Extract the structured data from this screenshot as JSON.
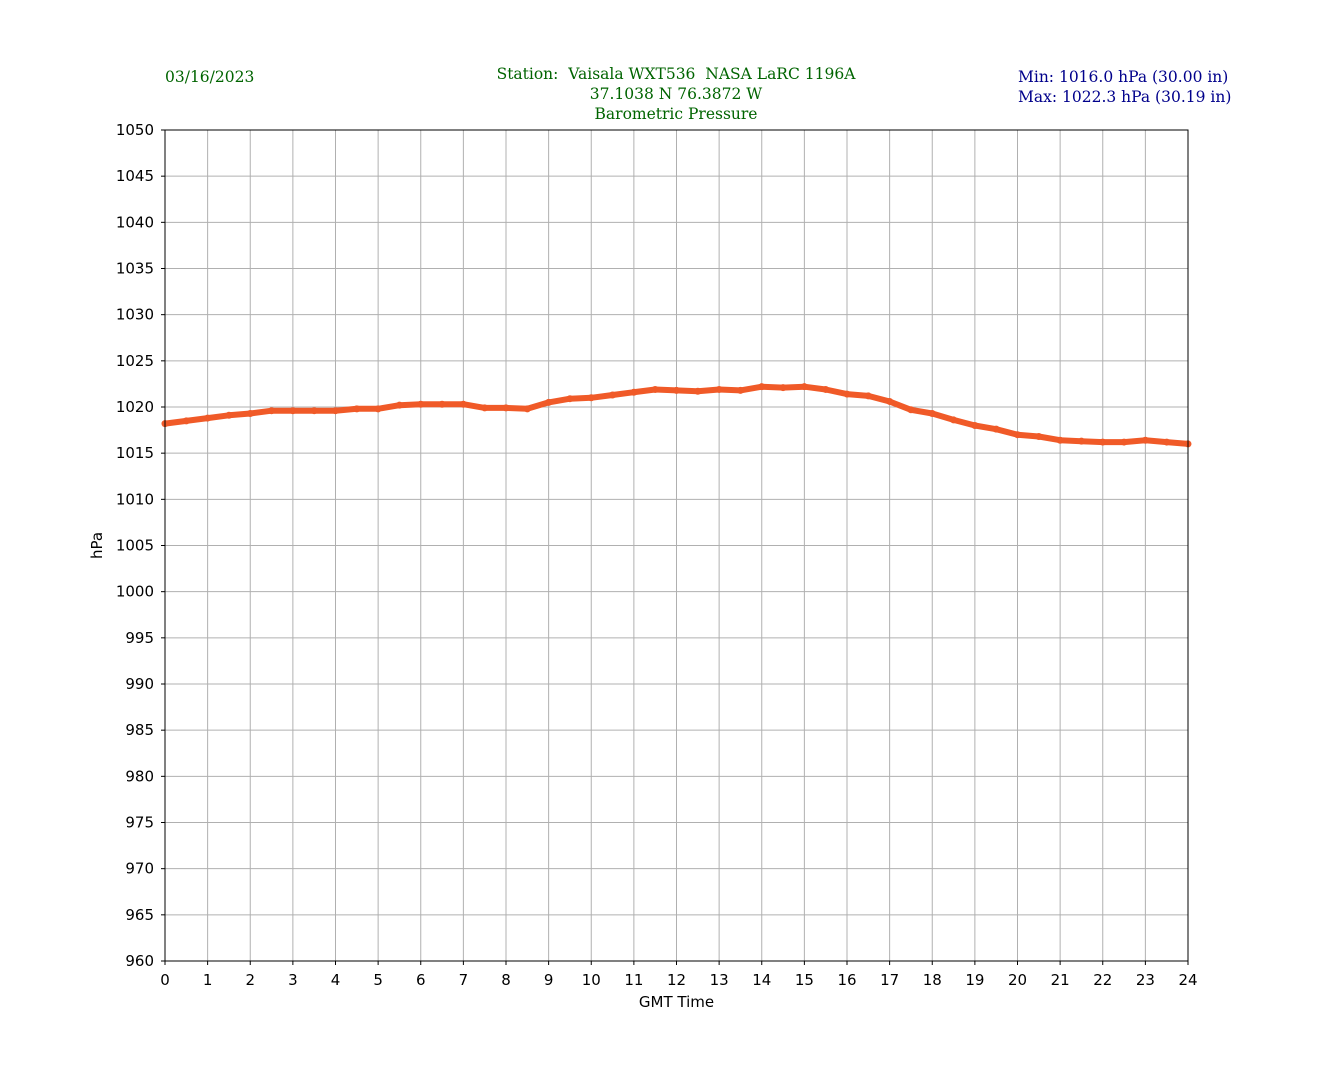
{
  "header": {
    "date": "03/16/2023",
    "station_line": "Station:  Vaisala WXT536  NASA LaRC 1196A",
    "coords_line": "37.1038 N 76.3872 W",
    "subtitle": "Barometric Pressure",
    "min_line": "Min: 1016.0 hPa (30.00 in)",
    "max_line": "Max: 1022.3 hPa (30.19 in)"
  },
  "colors": {
    "series": "#f05a28",
    "header_green": "#006400",
    "header_navy": "#00008b",
    "grid": "#b0b0b0"
  },
  "chart_data": {
    "type": "line",
    "title": "Barometric Pressure",
    "xlabel": "GMT Time",
    "ylabel": "hPa",
    "xlim": [
      0,
      24
    ],
    "ylim": [
      960,
      1050
    ],
    "xticks": [
      0,
      1,
      2,
      3,
      4,
      5,
      6,
      7,
      8,
      9,
      10,
      11,
      12,
      13,
      14,
      15,
      16,
      17,
      18,
      19,
      20,
      21,
      22,
      23,
      24
    ],
    "yticks": [
      960,
      965,
      970,
      975,
      980,
      985,
      990,
      995,
      1000,
      1005,
      1010,
      1015,
      1020,
      1025,
      1030,
      1035,
      1040,
      1045,
      1050
    ],
    "grid": true,
    "series": [
      {
        "x": [
          0,
          0.5,
          1,
          1.5,
          2,
          2.5,
          3,
          3.5,
          4,
          4.5,
          5,
          5.5,
          6,
          6.5,
          7,
          7.5,
          8,
          8.5,
          9,
          9.5,
          10,
          10.5,
          11,
          11.5,
          12,
          12.5,
          13,
          13.5,
          14,
          14.5,
          15,
          15.5,
          16,
          16.5,
          17,
          17.5,
          18,
          18.5,
          19,
          19.5,
          20,
          20.5,
          21,
          21.5,
          22,
          22.5,
          23,
          23.5,
          24
        ],
        "y": [
          1018.2,
          1018.5,
          1018.8,
          1019.1,
          1019.3,
          1019.6,
          1019.6,
          1019.6,
          1019.6,
          1019.8,
          1019.8,
          1020.2,
          1020.3,
          1020.3,
          1020.3,
          1019.9,
          1019.9,
          1019.8,
          1020.5,
          1020.9,
          1021.0,
          1021.3,
          1021.6,
          1021.9,
          1021.8,
          1021.7,
          1021.9,
          1021.8,
          1022.2,
          1022.1,
          1022.2,
          1021.9,
          1021.4,
          1021.2,
          1020.6,
          1019.7,
          1019.3,
          1018.6,
          1018.0,
          1017.6,
          1017.0,
          1016.8,
          1016.4,
          1016.3,
          1016.2,
          1016.2,
          1016.4,
          1016.2,
          1016.0
        ]
      }
    ]
  }
}
